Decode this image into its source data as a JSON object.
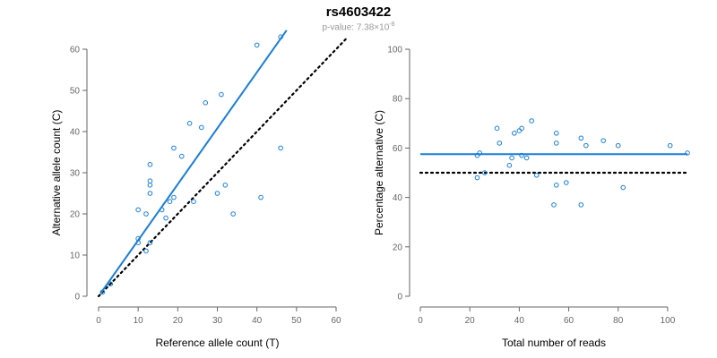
{
  "header": {
    "title": "rs4603422",
    "subtitle_prefix": "p-value: 7.38×10",
    "subtitle_exponent": "-8"
  },
  "colors": {
    "point": "#1a7ed6",
    "fit_line": "#1a7ed6",
    "reference_line": "#000000",
    "axis": "#666666"
  },
  "chart_data": [
    {
      "type": "scatter",
      "title": "",
      "xlabel": "Reference allele count (T)",
      "ylabel": "Alternative allele count (C)",
      "xlim": [
        0,
        60
      ],
      "ylim": [
        0,
        60
      ],
      "xticks": [
        0,
        10,
        20,
        30,
        40,
        50,
        60
      ],
      "yticks": [
        0,
        10,
        20,
        30,
        40,
        50,
        60
      ],
      "grid": false,
      "points": [
        [
          1,
          1
        ],
        [
          3,
          3
        ],
        [
          10,
          13
        ],
        [
          10,
          14
        ],
        [
          10,
          21
        ],
        [
          12,
          11
        ],
        [
          12,
          20
        ],
        [
          13,
          13
        ],
        [
          13,
          25
        ],
        [
          13,
          27
        ],
        [
          13,
          28
        ],
        [
          13,
          32
        ],
        [
          16,
          21
        ],
        [
          17,
          19
        ],
        [
          18,
          23
        ],
        [
          19,
          24
        ],
        [
          19,
          36
        ],
        [
          21,
          34
        ],
        [
          23,
          42
        ],
        [
          24,
          23
        ],
        [
          26,
          41
        ],
        [
          27,
          47
        ],
        [
          30,
          25
        ],
        [
          31,
          49
        ],
        [
          32,
          27
        ],
        [
          34,
          20
        ],
        [
          40,
          61
        ],
        [
          41,
          24
        ],
        [
          46,
          36
        ],
        [
          46,
          63
        ]
      ],
      "fit_line": {
        "slope": 1.36,
        "intercept": 0,
        "x_range": [
          0.5,
          47.5
        ],
        "style": "solid"
      },
      "reference_line": {
        "slope": 1,
        "intercept": 0,
        "x_range": [
          0,
          63
        ],
        "style": "dotted"
      }
    },
    {
      "type": "scatter",
      "title": "",
      "xlabel": "Total number of reads",
      "ylabel": "Percentage alternative (C)",
      "xlim": [
        0,
        108
      ],
      "ylim": [
        0,
        100
      ],
      "xticks": [
        0,
        20,
        40,
        60,
        80,
        100
      ],
      "yticks": [
        0,
        20,
        40,
        60,
        80,
        100
      ],
      "grid": false,
      "points": [
        [
          23,
          48
        ],
        [
          23,
          57
        ],
        [
          24,
          58
        ],
        [
          26,
          50
        ],
        [
          31,
          68
        ],
        [
          32,
          62
        ],
        [
          36,
          53
        ],
        [
          37,
          56
        ],
        [
          38,
          66
        ],
        [
          40,
          67
        ],
        [
          41,
          68
        ],
        [
          41,
          57
        ],
        [
          43,
          56
        ],
        [
          45,
          71
        ],
        [
          47,
          49
        ],
        [
          54,
          37
        ],
        [
          55,
          45
        ],
        [
          55,
          62
        ],
        [
          55,
          66
        ],
        [
          59,
          46
        ],
        [
          65,
          37
        ],
        [
          65,
          64
        ],
        [
          67,
          61
        ],
        [
          74,
          63
        ],
        [
          80,
          61
        ],
        [
          82,
          44
        ],
        [
          101,
          61
        ],
        [
          108,
          58
        ]
      ],
      "fit_line": {
        "slope": 0,
        "intercept": 57.5,
        "x_range": [
          0,
          108
        ],
        "style": "solid"
      },
      "reference_line": {
        "slope": 0,
        "intercept": 50,
        "x_range": [
          0,
          108
        ],
        "style": "dotted"
      }
    }
  ]
}
